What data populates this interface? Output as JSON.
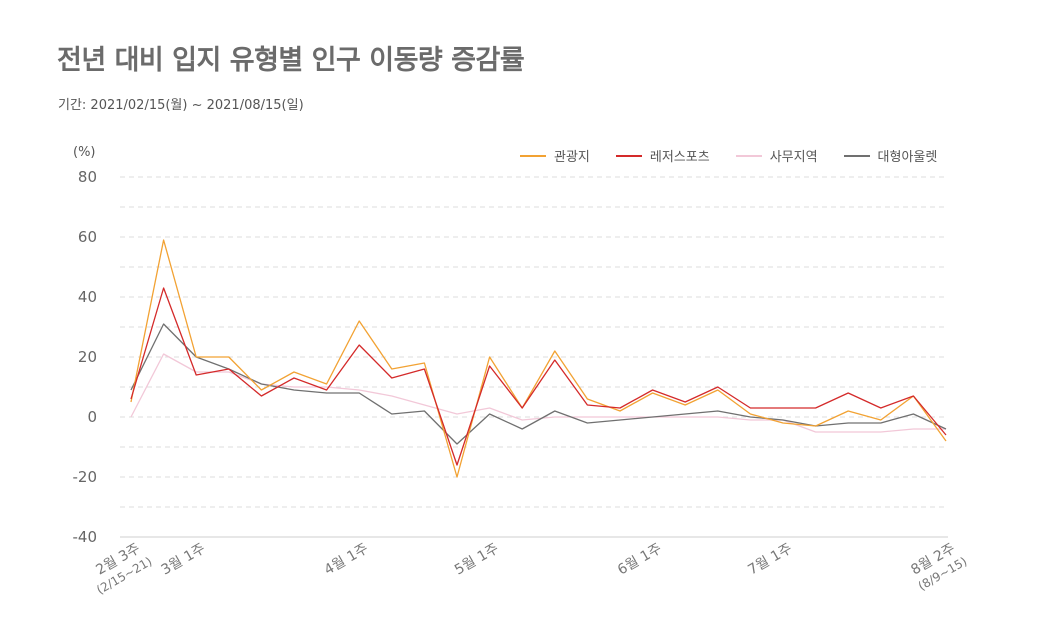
{
  "title": "전년 대비 입지 유형별 인구 이동량 증감률",
  "subtitle": "기간: 2021/02/15(월) ~ 2021/08/15(일)",
  "chart_data": {
    "type": "line",
    "unit_label": "(%)",
    "ylim": [
      -40,
      80
    ],
    "yticks": [
      80,
      60,
      40,
      20,
      0,
      -20,
      -40
    ],
    "grid": true,
    "legend_position": "top-right",
    "x_tick_labels": [
      {
        "index": 0,
        "label": "2월 3주",
        "sub": "(2/15~21)"
      },
      {
        "index": 2,
        "label": "3월 1주",
        "sub": ""
      },
      {
        "index": 7,
        "label": "4월 1주",
        "sub": ""
      },
      {
        "index": 11,
        "label": "5월 1주",
        "sub": ""
      },
      {
        "index": 16,
        "label": "6월 1주",
        "sub": ""
      },
      {
        "index": 20,
        "label": "7월 1주",
        "sub": ""
      },
      {
        "index": 25,
        "label": "8월 2주",
        "sub": "(8/9~15)"
      }
    ],
    "series": [
      {
        "name": "관광지",
        "color": "#f2a233",
        "values": [
          5,
          59,
          20,
          20,
          9,
          15,
          11,
          32,
          16,
          18,
          -20,
          20,
          3,
          22,
          6,
          2,
          8,
          4,
          9,
          1,
          -2,
          -3,
          2,
          -1,
          7,
          -8
        ]
      },
      {
        "name": "레저스포츠",
        "color": "#d42a2a",
        "values": [
          6,
          43,
          14,
          16,
          7,
          13,
          9,
          24,
          13,
          16,
          -16,
          17,
          3,
          19,
          4,
          3,
          9,
          5,
          10,
          3,
          3,
          3,
          8,
          3,
          7,
          -6
        ]
      },
      {
        "name": "사무지역",
        "color": "#f2c8d8",
        "values": [
          0,
          21,
          15,
          15,
          11,
          10,
          10,
          9,
          7,
          4,
          1,
          3,
          -1,
          0,
          0,
          0,
          0,
          0,
          0,
          -1,
          -1,
          -5,
          -5,
          -5,
          -4,
          -4
        ]
      },
      {
        "name": "대형아울렛",
        "color": "#707070",
        "values": [
          9,
          31,
          20,
          16,
          11,
          9,
          8,
          8,
          1,
          2,
          -9,
          1,
          -4,
          2,
          -2,
          -1,
          0,
          1,
          2,
          0,
          -1,
          -3,
          -2,
          -2,
          1,
          -4
        ]
      }
    ]
  }
}
